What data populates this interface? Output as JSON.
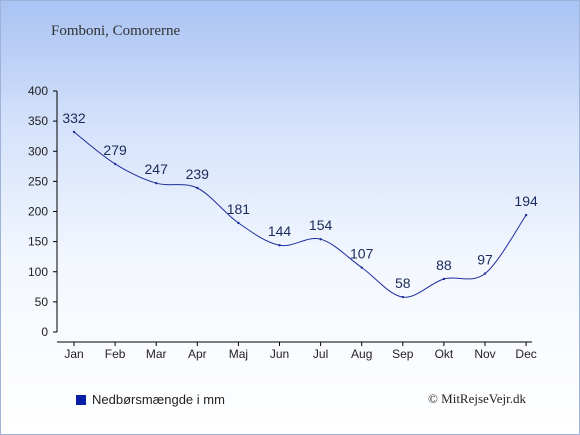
{
  "location": "Fomboni, Comorerne",
  "legend_label": "Nedbørsmængde i mm",
  "credit": "© MitRejseVejr.dk",
  "colors": {
    "line": "#1e2e9c",
    "swatch": "#0a1fa8",
    "axis": "#000000",
    "label": "#1a2a5a"
  },
  "chart_data": {
    "type": "line",
    "title": "",
    "xlabel": "",
    "ylabel": "",
    "categories": [
      "Jan",
      "Feb",
      "Mar",
      "Apr",
      "Maj",
      "Jun",
      "Jul",
      "Aug",
      "Sep",
      "Okt",
      "Nov",
      "Dec"
    ],
    "series": [
      {
        "name": "Nedbørsmængde i mm",
        "values": [
          332,
          279,
          247,
          239,
          181,
          144,
          154,
          107,
          58,
          88,
          97,
          194
        ]
      }
    ],
    "ylim": [
      0,
      400
    ],
    "yticks": [
      0,
      50,
      100,
      150,
      200,
      250,
      300,
      350,
      400
    ],
    "data_labels": true,
    "grid": false,
    "legend_position": "bottom-left"
  }
}
